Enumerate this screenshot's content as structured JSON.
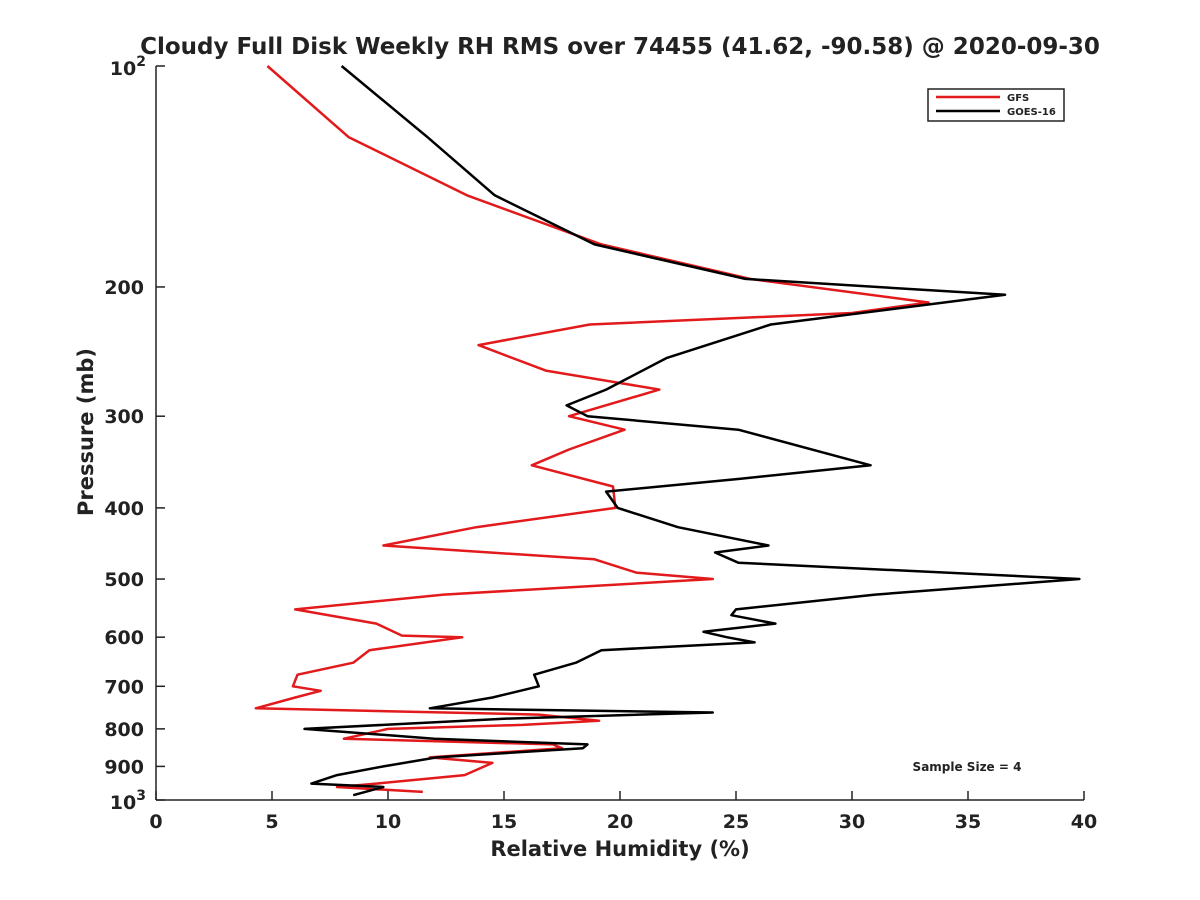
{
  "chart_data": {
    "type": "line",
    "title": "Cloudy Full Disk Weekly RH RMS over 74455 (41.62, -90.58) @ 2020-09-30",
    "xlabel": "Relative Humidity (%)",
    "ylabel": "Pressure (mb)",
    "xlim": [
      0,
      40
    ],
    "ylim": [
      100,
      1000
    ],
    "y_scale": "log",
    "y_reversed": true,
    "grid": false,
    "legend_position": "top-right",
    "x_ticks": [
      0,
      5,
      10,
      15,
      20,
      25,
      30,
      35,
      40
    ],
    "y_ticks": [
      {
        "value": 100,
        "base": "10",
        "exp": "2"
      },
      {
        "value": 200,
        "label": "200"
      },
      {
        "value": 300,
        "label": "300"
      },
      {
        "value": 400,
        "label": "400"
      },
      {
        "value": 500,
        "label": "500"
      },
      {
        "value": 600,
        "label": "600"
      },
      {
        "value": 700,
        "label": "700"
      },
      {
        "value": 800,
        "label": "800"
      },
      {
        "value": 900,
        "label": "900"
      },
      {
        "value": 1000,
        "base": "10",
        "exp": "3"
      }
    ],
    "annotation": "Sample Size = 4",
    "series": [
      {
        "name": "GFS",
        "color": "#e31a1c",
        "points": [
          {
            "x": 4.8,
            "y": 100
          },
          {
            "x": 8.3,
            "y": 125
          },
          {
            "x": 13.4,
            "y": 150
          },
          {
            "x": 19.2,
            "y": 175
          },
          {
            "x": 25.6,
            "y": 195
          },
          {
            "x": 33.3,
            "y": 210
          },
          {
            "x": 30.0,
            "y": 217
          },
          {
            "x": 18.7,
            "y": 225
          },
          {
            "x": 13.9,
            "y": 240
          },
          {
            "x": 16.8,
            "y": 260
          },
          {
            "x": 21.7,
            "y": 276
          },
          {
            "x": 17.8,
            "y": 300
          },
          {
            "x": 20.2,
            "y": 313
          },
          {
            "x": 17.8,
            "y": 333
          },
          {
            "x": 16.2,
            "y": 350
          },
          {
            "x": 19.7,
            "y": 374
          },
          {
            "x": 19.8,
            "y": 400
          },
          {
            "x": 13.8,
            "y": 425
          },
          {
            "x": 9.8,
            "y": 450
          },
          {
            "x": 18.9,
            "y": 470
          },
          {
            "x": 20.7,
            "y": 490
          },
          {
            "x": 24.0,
            "y": 500
          },
          {
            "x": 12.4,
            "y": 525
          },
          {
            "x": 6.0,
            "y": 550
          },
          {
            "x": 9.5,
            "y": 575
          },
          {
            "x": 10.6,
            "y": 597
          },
          {
            "x": 13.2,
            "y": 600
          },
          {
            "x": 9.2,
            "y": 625
          },
          {
            "x": 8.5,
            "y": 650
          },
          {
            "x": 6.1,
            "y": 675
          },
          {
            "x": 5.9,
            "y": 700
          },
          {
            "x": 7.1,
            "y": 710
          },
          {
            "x": 6.0,
            "y": 725
          },
          {
            "x": 4.3,
            "y": 750
          },
          {
            "x": 16.5,
            "y": 765
          },
          {
            "x": 19.1,
            "y": 780
          },
          {
            "x": 15.8,
            "y": 790
          },
          {
            "x": 10.0,
            "y": 800
          },
          {
            "x": 8.1,
            "y": 825
          },
          {
            "x": 17.1,
            "y": 840
          },
          {
            "x": 17.5,
            "y": 850
          },
          {
            "x": 11.8,
            "y": 875
          },
          {
            "x": 14.5,
            "y": 890
          },
          {
            "x": 13.3,
            "y": 925
          },
          {
            "x": 9.5,
            "y": 950
          },
          {
            "x": 7.8,
            "y": 960
          },
          {
            "x": 11.5,
            "y": 975
          }
        ]
      },
      {
        "name": "GOES-16",
        "color": "#000000",
        "points": [
          {
            "x": 8.0,
            "y": 100
          },
          {
            "x": 11.7,
            "y": 125
          },
          {
            "x": 14.6,
            "y": 150
          },
          {
            "x": 18.9,
            "y": 175
          },
          {
            "x": 25.4,
            "y": 195
          },
          {
            "x": 36.6,
            "y": 205
          },
          {
            "x": 26.5,
            "y": 225
          },
          {
            "x": 22.0,
            "y": 250
          },
          {
            "x": 19.4,
            "y": 276
          },
          {
            "x": 17.7,
            "y": 290
          },
          {
            "x": 18.6,
            "y": 300
          },
          {
            "x": 25.1,
            "y": 313
          },
          {
            "x": 30.8,
            "y": 350
          },
          {
            "x": 25.2,
            "y": 365
          },
          {
            "x": 19.4,
            "y": 380
          },
          {
            "x": 19.9,
            "y": 400
          },
          {
            "x": 22.5,
            "y": 425
          },
          {
            "x": 26.4,
            "y": 450
          },
          {
            "x": 24.1,
            "y": 460
          },
          {
            "x": 25.1,
            "y": 475
          },
          {
            "x": 39.8,
            "y": 500
          },
          {
            "x": 31.0,
            "y": 525
          },
          {
            "x": 25.0,
            "y": 550
          },
          {
            "x": 24.8,
            "y": 560
          },
          {
            "x": 26.7,
            "y": 575
          },
          {
            "x": 23.6,
            "y": 590
          },
          {
            "x": 24.6,
            "y": 600
          },
          {
            "x": 25.8,
            "y": 610
          },
          {
            "x": 19.2,
            "y": 625
          },
          {
            "x": 18.1,
            "y": 650
          },
          {
            "x": 16.3,
            "y": 675
          },
          {
            "x": 16.5,
            "y": 700
          },
          {
            "x": 14.5,
            "y": 725
          },
          {
            "x": 11.8,
            "y": 750
          },
          {
            "x": 24.0,
            "y": 760
          },
          {
            "x": 15.0,
            "y": 775
          },
          {
            "x": 6.4,
            "y": 800
          },
          {
            "x": 12.0,
            "y": 825
          },
          {
            "x": 18.6,
            "y": 840
          },
          {
            "x": 18.4,
            "y": 850
          },
          {
            "x": 12.1,
            "y": 875
          },
          {
            "x": 9.8,
            "y": 900
          },
          {
            "x": 7.8,
            "y": 925
          },
          {
            "x": 6.7,
            "y": 950
          },
          {
            "x": 9.8,
            "y": 960
          },
          {
            "x": 8.5,
            "y": 985
          }
        ]
      }
    ]
  }
}
